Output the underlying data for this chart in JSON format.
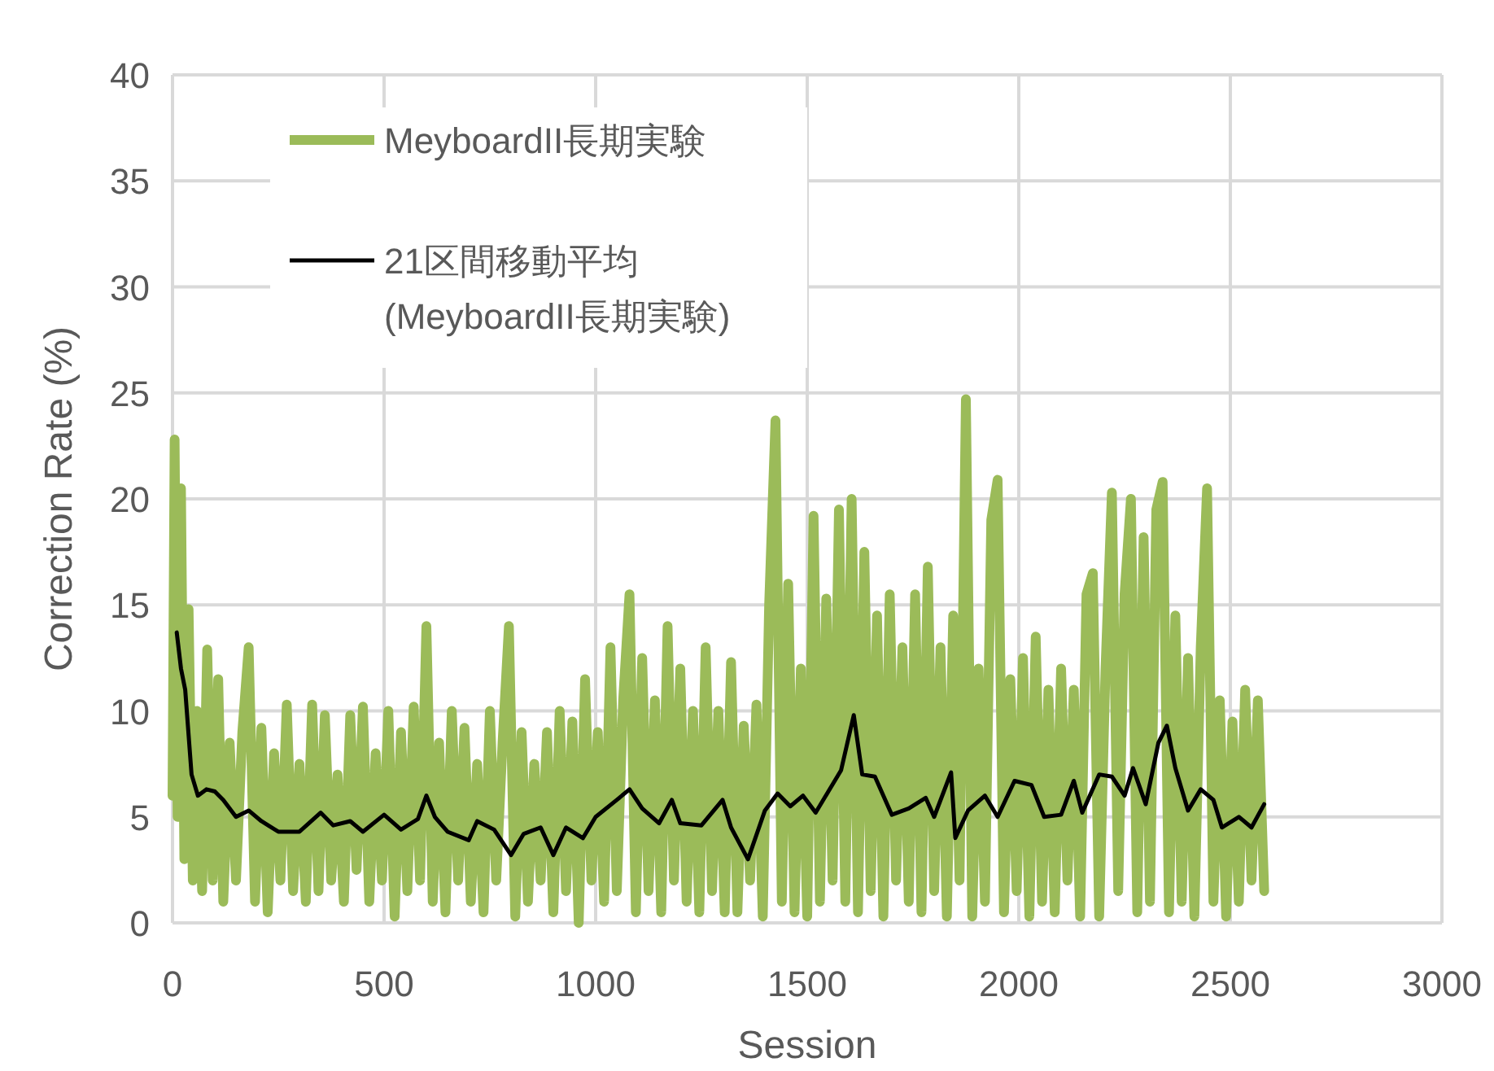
{
  "chart_data": {
    "type": "line",
    "xlabel": "Session",
    "ylabel": "Correction Rate (%)",
    "xlim": [
      0,
      3000
    ],
    "xticks": [
      0,
      500,
      1000,
      1500,
      2000,
      2500,
      3000
    ],
    "ylim": [
      0,
      40
    ],
    "yticks": [
      0,
      5,
      10,
      15,
      20,
      25,
      30,
      35,
      40
    ],
    "grid": true,
    "legend": "top left",
    "series": [
      {
        "name": "MeyboardII長期実験",
        "color": "#9bbb59",
        "x": [
          0,
          5,
          12,
          20,
          28,
          38,
          48,
          58,
          70,
          82,
          95,
          108,
          120,
          135,
          150,
          165,
          180,
          195,
          210,
          225,
          240,
          255,
          270,
          285,
          300,
          315,
          330,
          345,
          360,
          375,
          390,
          405,
          420,
          435,
          450,
          465,
          480,
          495,
          510,
          525,
          540,
          555,
          570,
          585,
          600,
          615,
          630,
          645,
          660,
          675,
          690,
          705,
          720,
          735,
          750,
          765,
          780,
          795,
          810,
          825,
          840,
          855,
          870,
          885,
          900,
          915,
          930,
          945,
          960,
          975,
          990,
          1005,
          1020,
          1035,
          1050,
          1065,
          1080,
          1095,
          1110,
          1125,
          1140,
          1155,
          1170,
          1185,
          1200,
          1215,
          1230,
          1245,
          1260,
          1275,
          1290,
          1305,
          1320,
          1335,
          1350,
          1365,
          1380,
          1395,
          1410,
          1425,
          1440,
          1455,
          1470,
          1485,
          1500,
          1515,
          1530,
          1545,
          1560,
          1575,
          1590,
          1605,
          1620,
          1635,
          1650,
          1665,
          1680,
          1695,
          1710,
          1725,
          1740,
          1755,
          1770,
          1785,
          1800,
          1815,
          1830,
          1845,
          1860,
          1875,
          1890,
          1905,
          1920,
          1935,
          1950,
          1965,
          1980,
          1995,
          2010,
          2025,
          2040,
          2055,
          2070,
          2085,
          2100,
          2115,
          2130,
          2145,
          2160,
          2175,
          2190,
          2205,
          2220,
          2235,
          2250,
          2265,
          2280,
          2295,
          2310,
          2325,
          2340,
          2355,
          2370,
          2385,
          2400,
          2415,
          2430,
          2445,
          2460,
          2475,
          2490,
          2505,
          2520,
          2535,
          2550,
          2565,
          2580
        ],
        "values": [
          6,
          22.8,
          5,
          20.5,
          3,
          14.8,
          2,
          10,
          1.5,
          12.9,
          2,
          11.5,
          1,
          8.5,
          2,
          9,
          13,
          1,
          9.2,
          0.5,
          8,
          2,
          10.3,
          1.5,
          7.5,
          1,
          10.3,
          1.5,
          9.8,
          2,
          7,
          1,
          9.8,
          2.5,
          10.2,
          1,
          8,
          2,
          10,
          0.3,
          9,
          1.5,
          10.2,
          2,
          14,
          1,
          8.5,
          0.5,
          10,
          2,
          9.2,
          1,
          7.5,
          0.5,
          10,
          2,
          8.5,
          14,
          0.3,
          9,
          1,
          7.5,
          2,
          9,
          0.5,
          10,
          1.5,
          9.5,
          0,
          11.5,
          2,
          9,
          1,
          13,
          1.5,
          10.5,
          15.5,
          0.5,
          12.5,
          1.5,
          10.5,
          0.5,
          14,
          2,
          12,
          1,
          10,
          0.5,
          13,
          1.5,
          10,
          0.5,
          12.3,
          0.5,
          9.3,
          2,
          10.3,
          0.3,
          15,
          23.7,
          1,
          16,
          0.5,
          12,
          0.3,
          19.2,
          1,
          15.3,
          2,
          19.5,
          1,
          20,
          0.5,
          17.5,
          1.5,
          14.5,
          0.3,
          15.5,
          2,
          13,
          1,
          15.5,
          0.5,
          16.8,
          1.5,
          13,
          0.3,
          14.5,
          2,
          24.7,
          0.3,
          12,
          1,
          19,
          20.9,
          0.5,
          11.5,
          1.5,
          12.5,
          0.3,
          13.5,
          1,
          11,
          0.5,
          12,
          2,
          11,
          0.3,
          15.5,
          16.5,
          0.3,
          12,
          20.3,
          1.5,
          15.5,
          20,
          0.5,
          18.2,
          1,
          19.5,
          20.8,
          0.5,
          14.5,
          1,
          12.5,
          0.3,
          13,
          20.5,
          1,
          10.5,
          0.3,
          9.5,
          1,
          11,
          2,
          10.5,
          1.5
        ]
      },
      {
        "name": "21区間移動平均\n(MeyboardII長期実験)",
        "color": "#000000",
        "x": [
          10,
          20,
          30,
          45,
          60,
          80,
          100,
          120,
          150,
          180,
          210,
          250,
          300,
          350,
          380,
          420,
          450,
          500,
          540,
          580,
          600,
          620,
          650,
          700,
          720,
          760,
          800,
          830,
          870,
          900,
          930,
          970,
          1000,
          1050,
          1080,
          1110,
          1150,
          1180,
          1200,
          1250,
          1300,
          1320,
          1360,
          1400,
          1430,
          1460,
          1490,
          1520,
          1550,
          1580,
          1610,
          1630,
          1660,
          1700,
          1740,
          1780,
          1800,
          1840,
          1850,
          1880,
          1920,
          1950,
          1990,
          2030,
          2060,
          2100,
          2130,
          2150,
          2190,
          2220,
          2250,
          2270,
          2300,
          2330,
          2350,
          2370,
          2400,
          2430,
          2460,
          2480,
          2520,
          2550,
          2580
        ],
        "values": [
          13.7,
          12,
          11,
          7,
          6,
          6.3,
          6.2,
          5.8,
          5,
          5.3,
          4.8,
          4.3,
          4.3,
          5.2,
          4.6,
          4.8,
          4.3,
          5.1,
          4.4,
          4.9,
          6,
          5,
          4.3,
          3.9,
          4.8,
          4.4,
          3.2,
          4.2,
          4.5,
          3.2,
          4.5,
          4,
          5,
          5.8,
          6.3,
          5.4,
          4.7,
          5.8,
          4.7,
          4.6,
          5.8,
          4.5,
          3,
          5.3,
          6.1,
          5.5,
          6,
          5.2,
          6.2,
          7.2,
          9.8,
          7,
          6.9,
          5.1,
          5.4,
          5.9,
          5,
          7.1,
          4,
          5.3,
          6,
          5,
          6.7,
          6.5,
          5,
          5.1,
          6.7,
          5.2,
          7,
          6.9,
          6,
          7.3,
          5.6,
          8.5,
          9.3,
          7.3,
          5.3,
          6.3,
          5.8,
          4.5,
          5,
          4.5,
          5.6
        ]
      }
    ]
  }
}
